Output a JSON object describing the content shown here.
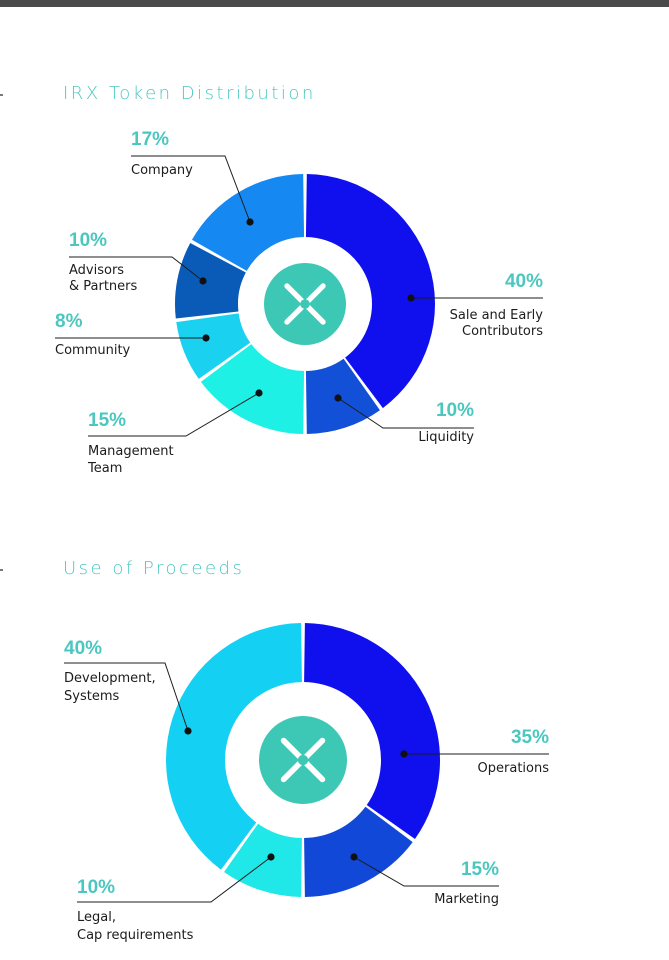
{
  "sections": [
    {
      "title": "IRX Token Distribution"
    },
    {
      "title": "Use of Proceeds"
    }
  ],
  "colors": {
    "title": "#4bc7c0",
    "logo_bg": "#3dc8b6",
    "logo_mark": "#ffffff"
  },
  "chart_data": [
    {
      "type": "pie",
      "title": "IRX Token Distribution",
      "donut": true,
      "center_icon": "irx-x-logo-icon",
      "slices": [
        {
          "label": "Sale and Early Contributors",
          "value": 40,
          "display": "40%",
          "color": "#1010ee"
        },
        {
          "label": "Liquidity",
          "value": 10,
          "display": "10%",
          "color": "#1250d8"
        },
        {
          "label": "Management Team",
          "value": 15,
          "display": "15%",
          "color": "#1ff0e6"
        },
        {
          "label": "Community",
          "value": 8,
          "display": "8%",
          "color": "#1ad2f0"
        },
        {
          "label": "Advisors & Partners",
          "value": 10,
          "display": "10%",
          "color": "#0a5ab8"
        },
        {
          "label": "Company",
          "value": 17,
          "display": "17%",
          "color": "#1588f2"
        }
      ]
    },
    {
      "type": "pie",
      "title": "Use of Proceeds",
      "donut": true,
      "center_icon": "irx-x-logo-icon",
      "slices": [
        {
          "label": "Operations",
          "value": 35,
          "display": "35%",
          "color": "#1010ee"
        },
        {
          "label": "Marketing",
          "value": 15,
          "display": "15%",
          "color": "#1248d8"
        },
        {
          "label": "Legal, Cap requirements",
          "value": 10,
          "display": "10%",
          "color": "#20e8e8"
        },
        {
          "label": "Development, Systems",
          "value": 40,
          "display": "40%",
          "color": "#14d0f2"
        }
      ]
    }
  ]
}
